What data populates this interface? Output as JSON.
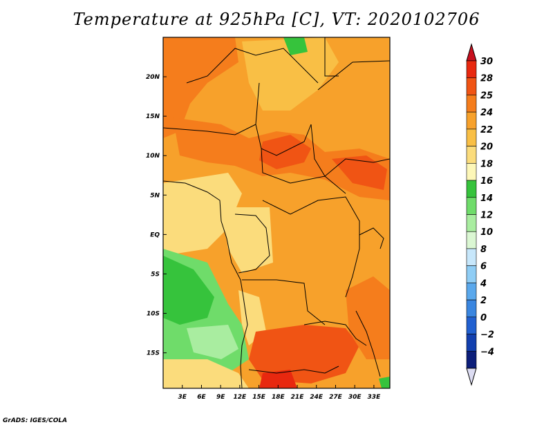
{
  "title": "Temperature at 925hPa [C], VT: 2020102706",
  "footer": "GrADS: IGES/COLA",
  "map": {
    "lon_range": [
      0,
      35.5
    ],
    "lat_range": [
      -19.5,
      25
    ],
    "lon_ticks": [
      {
        "value": 3,
        "label": "3E"
      },
      {
        "value": 6,
        "label": "6E"
      },
      {
        "value": 9,
        "label": "9E"
      },
      {
        "value": 12,
        "label": "12E"
      },
      {
        "value": 15,
        "label": "15E"
      },
      {
        "value": 18,
        "label": "18E"
      },
      {
        "value": 21,
        "label": "21E"
      },
      {
        "value": 24,
        "label": "24E"
      },
      {
        "value": 27,
        "label": "27E"
      },
      {
        "value": 30,
        "label": "30E"
      },
      {
        "value": 33,
        "label": "33E"
      }
    ],
    "lat_ticks": [
      {
        "value": 20,
        "label": "20N"
      },
      {
        "value": 15,
        "label": "15N"
      },
      {
        "value": 10,
        "label": "10N"
      },
      {
        "value": 5,
        "label": "5N"
      },
      {
        "value": 0,
        "label": "EQ"
      },
      {
        "value": -5,
        "label": "5S"
      },
      {
        "value": -10,
        "label": "10S"
      },
      {
        "value": -15,
        "label": "15S"
      }
    ]
  },
  "colorbar": {
    "levels": [
      {
        "label": "30",
        "color": "#e8280f"
      },
      {
        "label": "28",
        "color": "#f05414"
      },
      {
        "label": "25",
        "color": "#f57d1c"
      },
      {
        "label": "24",
        "color": "#f7a12b"
      },
      {
        "label": "22",
        "color": "#f9bf45"
      },
      {
        "label": "20",
        "color": "#fbdc7c"
      },
      {
        "label": "18",
        "color": "#fdf7b8"
      },
      {
        "label": "16",
        "color": "#36c33c"
      },
      {
        "label": "14",
        "color": "#6fdc6a"
      },
      {
        "label": "12",
        "color": "#a9eda0"
      },
      {
        "label": "10",
        "color": "#dbf7d3"
      },
      {
        "label": "8",
        "color": "#c7e7fb"
      },
      {
        "label": "6",
        "color": "#8fcdf5"
      },
      {
        "label": "4",
        "color": "#5aa8ec"
      },
      {
        "label": "2",
        "color": "#3a86e0"
      },
      {
        "label": "0",
        "color": "#2160d0"
      },
      {
        "label": "−2",
        "color": "#123fae"
      },
      {
        "label": "−4",
        "color": "#0c1e7a"
      }
    ],
    "top_cap_color": "#c8101e",
    "bottom_cap_color": "#dcdcf2"
  },
  "colors": {
    "hot": "#f05414",
    "warm": "#f7a12b",
    "mild": "#fbdc7c",
    "green": "#36c33c",
    "border": "#000000"
  }
}
